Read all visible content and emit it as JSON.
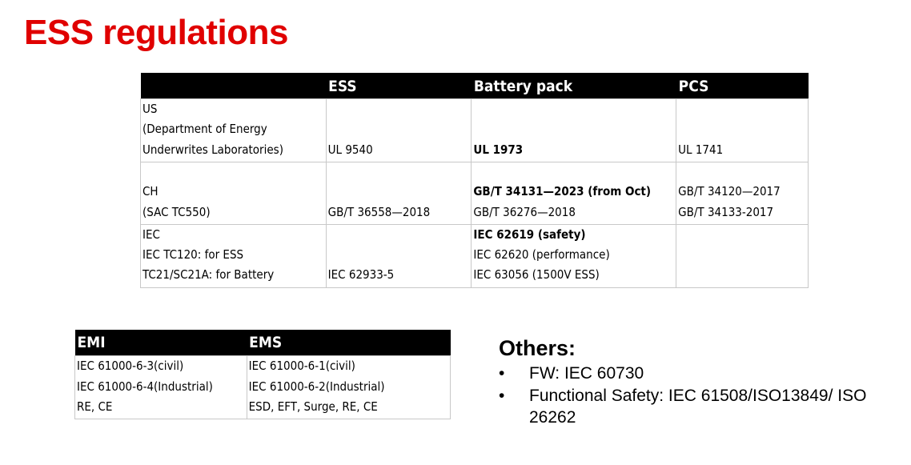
{
  "title": "ESS regulations",
  "main_table": {
    "headers": [
      "",
      "ESS",
      "Battery pack",
      "PCS"
    ],
    "rows": [
      [
        [
          {
            "text": "US",
            "bold": false
          },
          {
            "text": "(Department of Energy",
            "bold": false
          },
          {
            "text": "Underwrites Laboratories)",
            "bold": false
          }
        ],
        [
          {
            "text": "UL 9540",
            "bold": false
          }
        ],
        [
          {
            "text": "UL 1973",
            "bold": true
          }
        ],
        [
          {
            "text": "UL 1741",
            "bold": false
          }
        ]
      ],
      [
        [
          {
            "text": "CH",
            "bold": false
          },
          {
            "text": "(SAC TC550)",
            "bold": false
          }
        ],
        [
          {
            "text": "GB/T 36558—2018",
            "bold": false
          }
        ],
        [
          {
            "text": "GB/T 34131—2023 (from Oct)",
            "bold": true
          },
          {
            "text": "GB/T 36276—2018",
            "bold": false
          }
        ],
        [
          {
            "text": "GB/T 34120—2017",
            "bold": false
          },
          {
            "text": "GB/T 34133-2017",
            "bold": false
          }
        ]
      ],
      [
        [
          {
            "text": "IEC",
            "bold": false
          },
          {
            "text": "IEC TC120: for ESS",
            "bold": false
          },
          {
            "text": "TC21/SC21A: for Battery",
            "bold": false
          }
        ],
        [
          {
            "text": "IEC 62933-5",
            "bold": false
          }
        ],
        [
          {
            "text": "IEC 62619 (safety)",
            "bold": true
          },
          {
            "text": "IEC 62620 (performance)",
            "bold": false
          },
          {
            "text": "IEC 63056 (1500V ESS)",
            "bold": false
          }
        ],
        []
      ]
    ]
  },
  "emc_table": {
    "headers": [
      "EMI",
      "EMS"
    ],
    "rows": [
      [
        [
          {
            "text": "IEC 61000-6-3(civil)",
            "bold": false
          },
          {
            "text": "IEC 61000-6-4(Industrial)",
            "bold": false
          },
          {
            "text": "RE, CE",
            "bold": false
          }
        ],
        [
          {
            "text": "IEC 61000-6-1(civil)",
            "bold": false
          },
          {
            "text": "IEC 61000-6-2(Industrial)",
            "bold": false
          },
          {
            "text": "ESD, EFT, Surge, RE, CE",
            "bold": false
          }
        ]
      ]
    ]
  },
  "others": {
    "heading": "Others:",
    "bullet": "•",
    "items": [
      "FW: IEC 60730",
      "Functional Safety: IEC 61508/ISO13849/ ISO 26262"
    ]
  }
}
